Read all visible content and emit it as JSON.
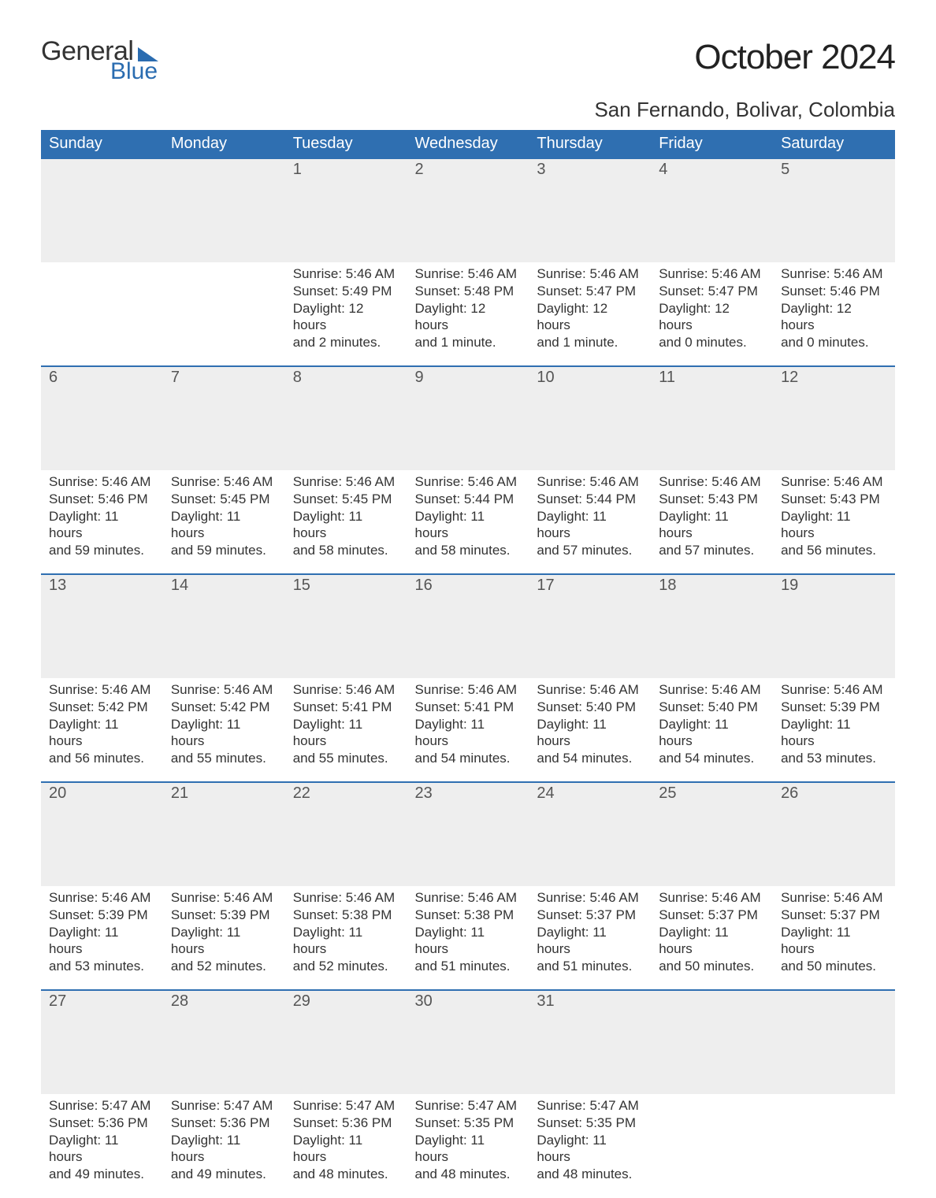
{
  "brand": {
    "word1": "General",
    "word2": "Blue",
    "accent_color": "#2a6cb0"
  },
  "title": "October 2024",
  "location": "San Fernando, Bolivar, Colombia",
  "colors": {
    "header_bg": "#2f6fb1",
    "header_fg": "#ffffff",
    "daynum_bg": "#eeeeee",
    "week_divider": "#2f6fb1",
    "text": "#333333",
    "page_bg": "#ffffff"
  },
  "typography": {
    "title_fontsize_pt": 33,
    "location_fontsize_pt": 20,
    "dayheader_fontsize_pt": 15,
    "daynum_fontsize_pt": 15,
    "body_fontsize_pt": 13
  },
  "layout": {
    "columns": 7,
    "rows": 5,
    "aspect": "1188x918"
  },
  "type": "calendar-table",
  "day_headers": [
    "Sunday",
    "Monday",
    "Tuesday",
    "Wednesday",
    "Thursday",
    "Friday",
    "Saturday"
  ],
  "weeks": [
    [
      null,
      null,
      {
        "num": "1",
        "sunrise": "Sunrise: 5:46 AM",
        "sunset": "Sunset: 5:49 PM",
        "dl1": "Daylight: 12 hours",
        "dl2": "and 2 minutes."
      },
      {
        "num": "2",
        "sunrise": "Sunrise: 5:46 AM",
        "sunset": "Sunset: 5:48 PM",
        "dl1": "Daylight: 12 hours",
        "dl2": "and 1 minute."
      },
      {
        "num": "3",
        "sunrise": "Sunrise: 5:46 AM",
        "sunset": "Sunset: 5:47 PM",
        "dl1": "Daylight: 12 hours",
        "dl2": "and 1 minute."
      },
      {
        "num": "4",
        "sunrise": "Sunrise: 5:46 AM",
        "sunset": "Sunset: 5:47 PM",
        "dl1": "Daylight: 12 hours",
        "dl2": "and 0 minutes."
      },
      {
        "num": "5",
        "sunrise": "Sunrise: 5:46 AM",
        "sunset": "Sunset: 5:46 PM",
        "dl1": "Daylight: 12 hours",
        "dl2": "and 0 minutes."
      }
    ],
    [
      {
        "num": "6",
        "sunrise": "Sunrise: 5:46 AM",
        "sunset": "Sunset: 5:46 PM",
        "dl1": "Daylight: 11 hours",
        "dl2": "and 59 minutes."
      },
      {
        "num": "7",
        "sunrise": "Sunrise: 5:46 AM",
        "sunset": "Sunset: 5:45 PM",
        "dl1": "Daylight: 11 hours",
        "dl2": "and 59 minutes."
      },
      {
        "num": "8",
        "sunrise": "Sunrise: 5:46 AM",
        "sunset": "Sunset: 5:45 PM",
        "dl1": "Daylight: 11 hours",
        "dl2": "and 58 minutes."
      },
      {
        "num": "9",
        "sunrise": "Sunrise: 5:46 AM",
        "sunset": "Sunset: 5:44 PM",
        "dl1": "Daylight: 11 hours",
        "dl2": "and 58 minutes."
      },
      {
        "num": "10",
        "sunrise": "Sunrise: 5:46 AM",
        "sunset": "Sunset: 5:44 PM",
        "dl1": "Daylight: 11 hours",
        "dl2": "and 57 minutes."
      },
      {
        "num": "11",
        "sunrise": "Sunrise: 5:46 AM",
        "sunset": "Sunset: 5:43 PM",
        "dl1": "Daylight: 11 hours",
        "dl2": "and 57 minutes."
      },
      {
        "num": "12",
        "sunrise": "Sunrise: 5:46 AM",
        "sunset": "Sunset: 5:43 PM",
        "dl1": "Daylight: 11 hours",
        "dl2": "and 56 minutes."
      }
    ],
    [
      {
        "num": "13",
        "sunrise": "Sunrise: 5:46 AM",
        "sunset": "Sunset: 5:42 PM",
        "dl1": "Daylight: 11 hours",
        "dl2": "and 56 minutes."
      },
      {
        "num": "14",
        "sunrise": "Sunrise: 5:46 AM",
        "sunset": "Sunset: 5:42 PM",
        "dl1": "Daylight: 11 hours",
        "dl2": "and 55 minutes."
      },
      {
        "num": "15",
        "sunrise": "Sunrise: 5:46 AM",
        "sunset": "Sunset: 5:41 PM",
        "dl1": "Daylight: 11 hours",
        "dl2": "and 55 minutes."
      },
      {
        "num": "16",
        "sunrise": "Sunrise: 5:46 AM",
        "sunset": "Sunset: 5:41 PM",
        "dl1": "Daylight: 11 hours",
        "dl2": "and 54 minutes."
      },
      {
        "num": "17",
        "sunrise": "Sunrise: 5:46 AM",
        "sunset": "Sunset: 5:40 PM",
        "dl1": "Daylight: 11 hours",
        "dl2": "and 54 minutes."
      },
      {
        "num": "18",
        "sunrise": "Sunrise: 5:46 AM",
        "sunset": "Sunset: 5:40 PM",
        "dl1": "Daylight: 11 hours",
        "dl2": "and 54 minutes."
      },
      {
        "num": "19",
        "sunrise": "Sunrise: 5:46 AM",
        "sunset": "Sunset: 5:39 PM",
        "dl1": "Daylight: 11 hours",
        "dl2": "and 53 minutes."
      }
    ],
    [
      {
        "num": "20",
        "sunrise": "Sunrise: 5:46 AM",
        "sunset": "Sunset: 5:39 PM",
        "dl1": "Daylight: 11 hours",
        "dl2": "and 53 minutes."
      },
      {
        "num": "21",
        "sunrise": "Sunrise: 5:46 AM",
        "sunset": "Sunset: 5:39 PM",
        "dl1": "Daylight: 11 hours",
        "dl2": "and 52 minutes."
      },
      {
        "num": "22",
        "sunrise": "Sunrise: 5:46 AM",
        "sunset": "Sunset: 5:38 PM",
        "dl1": "Daylight: 11 hours",
        "dl2": "and 52 minutes."
      },
      {
        "num": "23",
        "sunrise": "Sunrise: 5:46 AM",
        "sunset": "Sunset: 5:38 PM",
        "dl1": "Daylight: 11 hours",
        "dl2": "and 51 minutes."
      },
      {
        "num": "24",
        "sunrise": "Sunrise: 5:46 AM",
        "sunset": "Sunset: 5:37 PM",
        "dl1": "Daylight: 11 hours",
        "dl2": "and 51 minutes."
      },
      {
        "num": "25",
        "sunrise": "Sunrise: 5:46 AM",
        "sunset": "Sunset: 5:37 PM",
        "dl1": "Daylight: 11 hours",
        "dl2": "and 50 minutes."
      },
      {
        "num": "26",
        "sunrise": "Sunrise: 5:46 AM",
        "sunset": "Sunset: 5:37 PM",
        "dl1": "Daylight: 11 hours",
        "dl2": "and 50 minutes."
      }
    ],
    [
      {
        "num": "27",
        "sunrise": "Sunrise: 5:47 AM",
        "sunset": "Sunset: 5:36 PM",
        "dl1": "Daylight: 11 hours",
        "dl2": "and 49 minutes."
      },
      {
        "num": "28",
        "sunrise": "Sunrise: 5:47 AM",
        "sunset": "Sunset: 5:36 PM",
        "dl1": "Daylight: 11 hours",
        "dl2": "and 49 minutes."
      },
      {
        "num": "29",
        "sunrise": "Sunrise: 5:47 AM",
        "sunset": "Sunset: 5:36 PM",
        "dl1": "Daylight: 11 hours",
        "dl2": "and 48 minutes."
      },
      {
        "num": "30",
        "sunrise": "Sunrise: 5:47 AM",
        "sunset": "Sunset: 5:35 PM",
        "dl1": "Daylight: 11 hours",
        "dl2": "and 48 minutes."
      },
      {
        "num": "31",
        "sunrise": "Sunrise: 5:47 AM",
        "sunset": "Sunset: 5:35 PM",
        "dl1": "Daylight: 11 hours",
        "dl2": "and 48 minutes."
      },
      null,
      null
    ]
  ]
}
